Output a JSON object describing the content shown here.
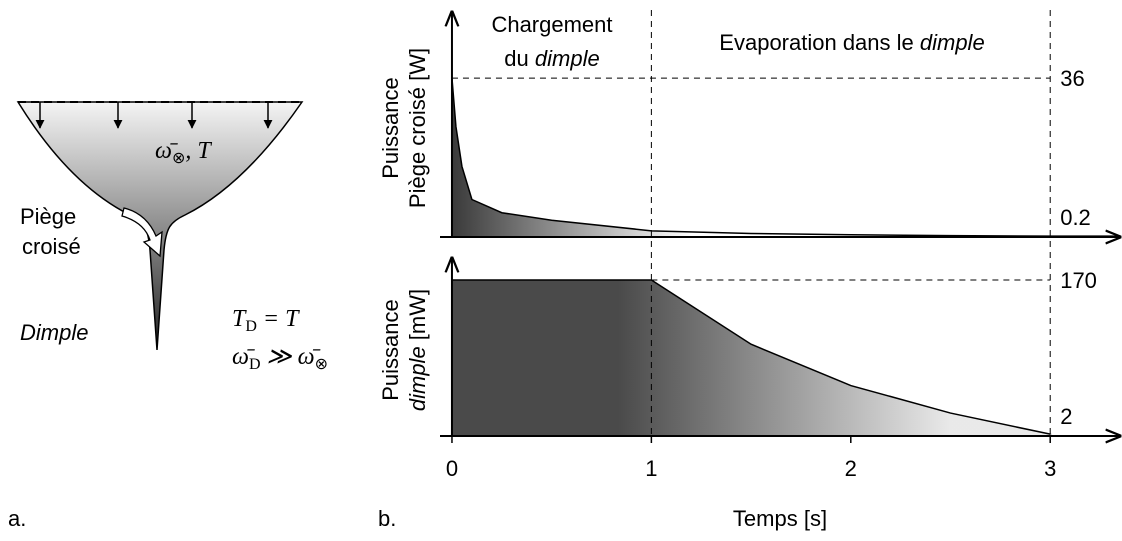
{
  "diagram": {
    "label": "a.",
    "trap_params": {
      "omega": "ω̄",
      "sub": "⊗",
      "rest": ", T"
    },
    "trap_name": [
      "Piège",
      "croisé"
    ],
    "dimple_name": "Dimple",
    "eq1": {
      "base": "T",
      "sub": "D",
      "rest": " = T"
    },
    "eq2": {
      "base": "ω̄",
      "sub": "D",
      "rel": " ≫ ",
      "base2": "ω̄",
      "sub2": "⊗"
    }
  },
  "figure": {
    "label": "b.",
    "phase_boundaries": [
      1,
      3
    ],
    "phase1": {
      "line1": "Chargement",
      "line2": "du ",
      "line2_italic": "dimple"
    },
    "phase2": {
      "text": "Evaporation dans le ",
      "italic": "dimple"
    }
  },
  "chart_data": [
    {
      "type": "area",
      "ylabel": {
        "line1": "Puissance",
        "line2": "Piège croisé [W]"
      },
      "x": [
        0,
        0.02,
        0.05,
        0.1,
        0.25,
        0.5,
        1,
        1.5,
        2,
        2.5,
        3,
        3.34
      ],
      "values": [
        36,
        25,
        16,
        8.5,
        5.5,
        3.8,
        1.4,
        0.8,
        0.5,
        0.3,
        0.2,
        0.2
      ],
      "color": "#3a3a3a",
      "xlim": [
        -0.06,
        3.35
      ],
      "ylim": [
        0,
        51
      ],
      "yticks": [
        0.2,
        36
      ]
    },
    {
      "type": "area",
      "ylabel": {
        "line1": "Puissance",
        "line2_italic": "dimple",
        "line2": " [mW]"
      },
      "xlabel": "Temps [s]",
      "x": [
        0,
        1,
        1.5,
        2,
        2.5,
        3
      ],
      "values": [
        170,
        170,
        100,
        55,
        25,
        2
      ],
      "color": "#4a4a4a",
      "xlim": [
        -0.06,
        3.35
      ],
      "ylim": [
        0,
        194
      ],
      "yticks": [
        2,
        170
      ],
      "xticks": [
        0,
        1,
        2,
        3
      ]
    }
  ]
}
